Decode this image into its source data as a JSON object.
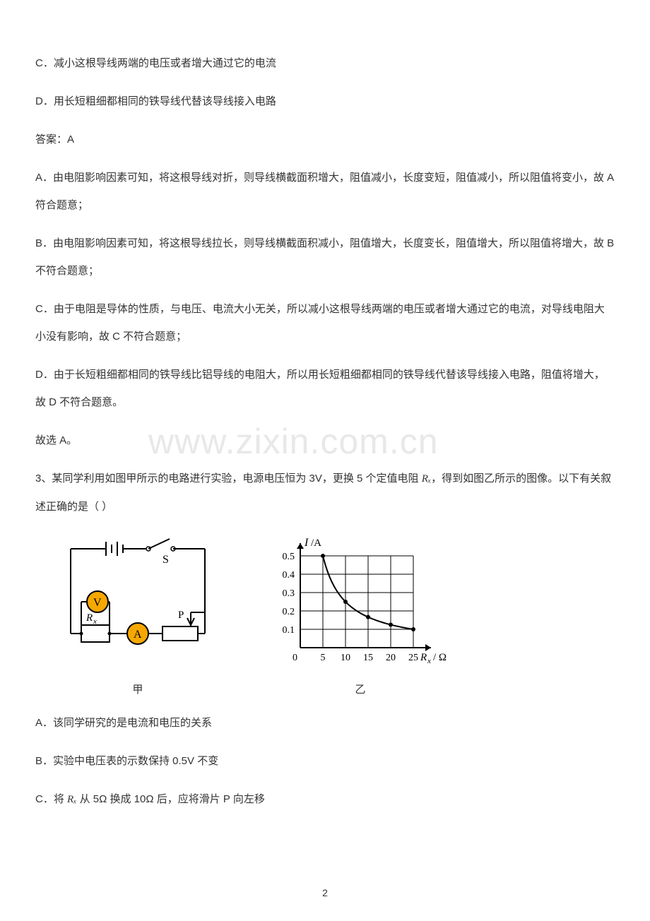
{
  "watermark": "www.zixin.com.cn",
  "page_number": "2",
  "paragraphs": {
    "p1": "C．减小这根导线两端的电压或者增大通过它的电流",
    "p2": "D．用长短粗细都相同的铁导线代替该导线接入电路",
    "p3": "答案：A",
    "p4": "A．由电阻影响因素可知，将这根导线对折，则导线横截面积增大，阻值减小，长度变短，阻值减小，所以阻值将变小，故 A 符合题意；",
    "p5": "B．由电阻影响因素可知，将这根导线拉长，则导线横截面积减小，阻值增大，长度变长，阻值增大，所以阻值将增大，故 B 不符合题意；",
    "p6": "C．由于电阻是导体的性质，与电压、电流大小无关，所以减小这根导线两端的电压或者增大通过它的电流，对导线电阻大小没有影响，故 C 不符合题意；",
    "p7": "D．由于长短粗细都相同的铁导线比铝导线的电阻大，所以用长短粗细都相同的铁导线代替该导线接入电路，阻值将增大，故 D 不符合题意。",
    "p8": "故选 A。",
    "q3_prefix": "3、某同学利用如图甲所示的电路进行实验，电源电压恒为 3V，更换 5 个定值电阻 ",
    "q3_rx": "Rₓ",
    "q3_suffix": "，得到如图乙所示的图像。以下有关叙述正确的是（   ）",
    "opt_a": "A．该同学研究的是电流和电压的关系",
    "opt_b": "B．实验中电压表的示数保持 0.5V 不变",
    "opt_c_prefix": "C．将 ",
    "opt_c_rx": "Rₓ",
    "opt_c_suffix": " 从 5Ω 换成 10Ω 后，应将滑片 P 向左移"
  },
  "fig_caption_left": "甲",
  "fig_caption_right": "乙",
  "circuit": {
    "stroke": "#000000",
    "stroke_width": 2,
    "voltmeter_fill": "#f6a800",
    "ammeter_fill": "#f6a800",
    "label_V": "V",
    "label_A": "A",
    "label_Rx": "Rₓ",
    "label_S": "S",
    "label_P": "P"
  },
  "chart": {
    "type": "line",
    "stroke": "#000000",
    "stroke_width": 2,
    "bg": "#ffffff",
    "y_label": "I/A",
    "y_label_I": "I",
    "y_label_A": "/A",
    "x_label_Rx": "Rₓ",
    "x_label_unit": " / Ω",
    "x_ticks": [
      "0",
      "5",
      "10",
      "15",
      "20",
      "25"
    ],
    "y_ticks": [
      "0.1",
      "0.2",
      "0.3",
      "0.4",
      "0.5"
    ],
    "xlim": [
      0,
      25
    ],
    "ylim": [
      0,
      0.5
    ],
    "grid_xmax": 25,
    "grid_ymax": 0.5,
    "points": [
      {
        "x": 5,
        "y": 0.5
      },
      {
        "x": 10,
        "y": 0.25
      },
      {
        "x": 15,
        "y": 0.167
      },
      {
        "x": 20,
        "y": 0.125
      },
      {
        "x": 25,
        "y": 0.1
      }
    ],
    "point_radius": 3
  }
}
